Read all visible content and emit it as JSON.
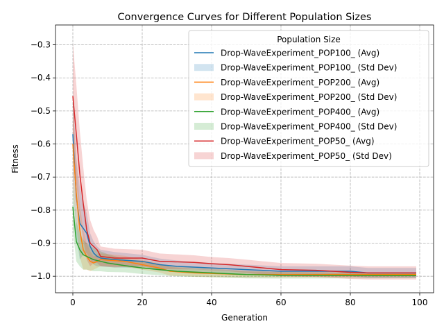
{
  "chart_data": {
    "type": "line",
    "title": "Convergence Curves for Different Population Sizes",
    "xlabel": "Generation",
    "ylabel": "Fitness",
    "xlim": [
      -5,
      104
    ],
    "ylim": [
      -1.05,
      -0.24
    ],
    "xticks": [
      0,
      20,
      40,
      60,
      80,
      100
    ],
    "yticks": [
      -1.0,
      -0.9,
      -0.8,
      -0.7,
      -0.6,
      -0.5,
      -0.4,
      -0.3
    ],
    "ytick_labels": [
      "−1.0",
      "−0.9",
      "−0.8",
      "−0.7",
      "−0.6",
      "−0.5",
      "−0.4",
      "−0.3"
    ],
    "grid": true,
    "legend": {
      "title": "Population Size",
      "position": "upper right"
    },
    "series": [
      {
        "name": "Drop-WaveExperiment_POP100_",
        "avg_label": "Drop-WaveExperiment_POP100_ (Avg)",
        "std_label": "Drop-WaveExperiment_POP100_ (Std Dev)",
        "color": "#1f77b4",
        "points": [
          [
            0,
            -0.57
          ],
          [
            1,
            -0.76
          ],
          [
            2,
            -0.84
          ],
          [
            3,
            -0.855
          ],
          [
            4,
            -0.87
          ],
          [
            5,
            -0.91
          ],
          [
            6,
            -0.93
          ],
          [
            7,
            -0.94
          ],
          [
            8,
            -0.945
          ],
          [
            12,
            -0.95
          ],
          [
            20,
            -0.955
          ],
          [
            25,
            -0.965
          ],
          [
            30,
            -0.97
          ],
          [
            40,
            -0.975
          ],
          [
            50,
            -0.98
          ],
          [
            60,
            -0.985
          ],
          [
            70,
            -0.985
          ],
          [
            80,
            -0.985
          ],
          [
            85,
            -0.99
          ],
          [
            99,
            -0.99
          ]
        ],
        "std": [
          [
            0,
            0.13
          ],
          [
            1,
            0.12
          ],
          [
            2,
            0.11
          ],
          [
            3,
            0.08
          ],
          [
            4,
            0.06
          ],
          [
            5,
            0.04
          ],
          [
            8,
            0.025
          ],
          [
            20,
            0.02
          ],
          [
            40,
            0.015
          ],
          [
            60,
            0.015
          ],
          [
            80,
            0.015
          ],
          [
            99,
            0.015
          ]
        ]
      },
      {
        "name": "Drop-WaveExperiment_POP200_",
        "avg_label": "Drop-WaveExperiment_POP200_ (Avg)",
        "std_label": "Drop-WaveExperiment_POP200_ (Std Dev)",
        "color": "#ff7f0e",
        "points": [
          [
            0,
            -0.6
          ],
          [
            1,
            -0.75
          ],
          [
            2,
            -0.86
          ],
          [
            3,
            -0.92
          ],
          [
            4,
            -0.94
          ],
          [
            5,
            -0.955
          ],
          [
            6,
            -0.96
          ],
          [
            7,
            -0.955
          ],
          [
            8,
            -0.95
          ],
          [
            15,
            -0.955
          ],
          [
            20,
            -0.965
          ],
          [
            25,
            -0.975
          ],
          [
            28,
            -0.985
          ],
          [
            35,
            -0.99
          ],
          [
            50,
            -0.995
          ],
          [
            99,
            -0.995
          ]
        ],
        "std": [
          [
            0,
            0.12
          ],
          [
            1,
            0.1
          ],
          [
            2,
            0.08
          ],
          [
            3,
            0.06
          ],
          [
            4,
            0.04
          ],
          [
            6,
            0.02
          ],
          [
            20,
            0.015
          ],
          [
            40,
            0.01
          ],
          [
            99,
            0.005
          ]
        ]
      },
      {
        "name": "Drop-WaveExperiment_POP400_",
        "avg_label": "Drop-WaveExperiment_POP400_ (Avg)",
        "std_label": "Drop-WaveExperiment_POP400_ (Std Dev)",
        "color": "#2ca02c",
        "points": [
          [
            0,
            -0.79
          ],
          [
            1,
            -0.895
          ],
          [
            2,
            -0.92
          ],
          [
            3,
            -0.935
          ],
          [
            4,
            -0.94
          ],
          [
            5,
            -0.945
          ],
          [
            6,
            -0.95
          ],
          [
            8,
            -0.955
          ],
          [
            10,
            -0.96
          ],
          [
            15,
            -0.968
          ],
          [
            20,
            -0.975
          ],
          [
            25,
            -0.98
          ],
          [
            30,
            -0.985
          ],
          [
            40,
            -0.99
          ],
          [
            50,
            -0.995
          ],
          [
            60,
            -0.997
          ],
          [
            99,
            -0.998
          ]
        ],
        "std": [
          [
            0,
            0.07
          ],
          [
            1,
            0.06
          ],
          [
            2,
            0.05
          ],
          [
            4,
            0.04
          ],
          [
            8,
            0.03
          ],
          [
            15,
            0.02
          ],
          [
            30,
            0.015
          ],
          [
            60,
            0.01
          ],
          [
            99,
            0.008
          ]
        ]
      },
      {
        "name": "Drop-WaveExperiment_POP50_",
        "avg_label": "Drop-WaveExperiment_POP50_ (Avg)",
        "std_label": "Drop-WaveExperiment_POP50_ (Std Dev)",
        "color": "#d62728",
        "points": [
          [
            0,
            -0.455
          ],
          [
            1,
            -0.57
          ],
          [
            2,
            -0.69
          ],
          [
            3,
            -0.78
          ],
          [
            4,
            -0.86
          ],
          [
            5,
            -0.9
          ],
          [
            6,
            -0.91
          ],
          [
            7,
            -0.92
          ],
          [
            8,
            -0.94
          ],
          [
            12,
            -0.945
          ],
          [
            20,
            -0.945
          ],
          [
            25,
            -0.955
          ],
          [
            35,
            -0.958
          ],
          [
            40,
            -0.962
          ],
          [
            45,
            -0.965
          ],
          [
            50,
            -0.97
          ],
          [
            55,
            -0.975
          ],
          [
            60,
            -0.98
          ],
          [
            70,
            -0.982
          ],
          [
            75,
            -0.985
          ],
          [
            80,
            -0.988
          ],
          [
            85,
            -0.99
          ],
          [
            99,
            -0.99
          ]
        ],
        "std": [
          [
            0,
            0.16
          ],
          [
            1,
            0.15
          ],
          [
            2,
            0.13
          ],
          [
            3,
            0.11
          ],
          [
            4,
            0.09
          ],
          [
            5,
            0.07
          ],
          [
            6,
            0.05
          ],
          [
            8,
            0.03
          ],
          [
            20,
            0.025
          ],
          [
            40,
            0.02
          ],
          [
            60,
            0.02
          ],
          [
            80,
            0.02
          ],
          [
            99,
            0.02
          ]
        ]
      }
    ]
  }
}
